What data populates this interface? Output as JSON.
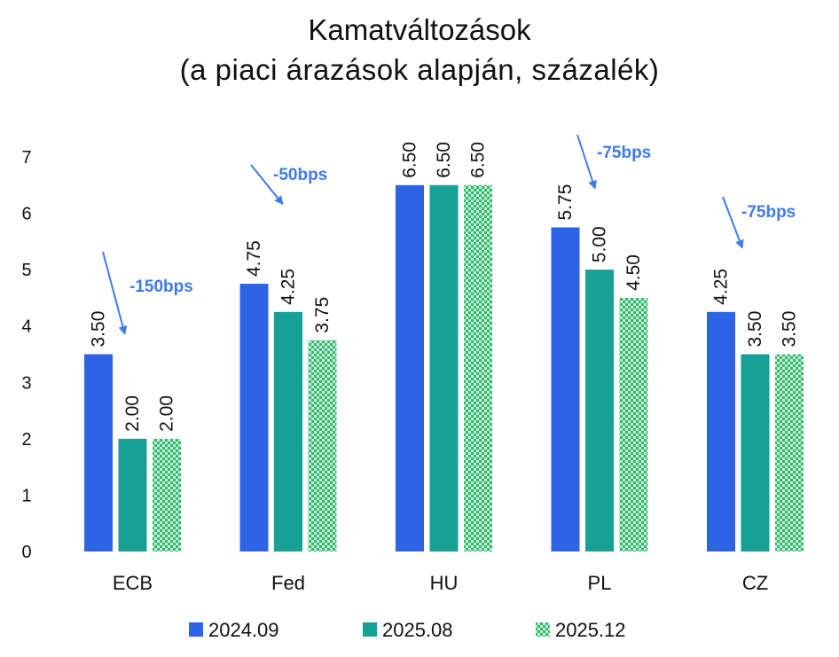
{
  "chart_data": {
    "type": "bar",
    "title_line1": "Kamatváltozások",
    "title_line2": "(a piaci árazások alapján, százalék)",
    "categories": [
      "ECB",
      "Fed",
      "HU",
      "PL",
      "CZ"
    ],
    "series": [
      {
        "name": "2024.09",
        "values": [
          3.5,
          4.75,
          6.5,
          5.75,
          4.25
        ],
        "value_labels": [
          "3.50",
          "4.75",
          "6.50",
          "5.75",
          "4.25"
        ],
        "color": "#2E63E6",
        "pattern": "solid"
      },
      {
        "name": "2025.08",
        "values": [
          2.0,
          4.25,
          6.5,
          5.0,
          3.5
        ],
        "value_labels": [
          "2.00",
          "4.25",
          "6.50",
          "5.00",
          "3.50"
        ],
        "color": "#16A096",
        "pattern": "solid"
      },
      {
        "name": "2025.12",
        "values": [
          2.0,
          3.75,
          6.5,
          4.5,
          3.5
        ],
        "value_labels": [
          "2.00",
          "3.75",
          "6.50",
          "4.50",
          "3.50"
        ],
        "color": "#2FB86E",
        "pattern": "hatched"
      }
    ],
    "yticks": [
      "0",
      "1",
      "2",
      "3",
      "4",
      "5",
      "6",
      "7"
    ],
    "ylim": [
      0,
      7
    ],
    "grid": false,
    "legend_position": "bottom",
    "annotation_color": "#3E7BEB",
    "annotations": [
      {
        "category": "ECB",
        "text": "-150bps"
      },
      {
        "category": "Fed",
        "text": "-50bps"
      },
      {
        "category": "PL",
        "text": "-75bps"
      },
      {
        "category": "CZ",
        "text": "-75bps"
      }
    ]
  }
}
